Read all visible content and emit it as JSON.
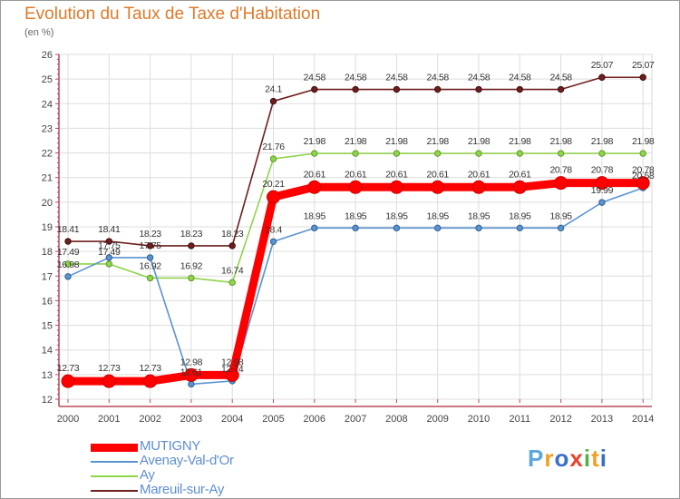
{
  "title": "Evolution du Taux de Taxe d'Habitation",
  "unit_label": "(en %)",
  "logo_text": "Proxiti",
  "logo_colors": [
    "#5ba7e0",
    "#f0a020",
    "#3b6ec9",
    "#e8452c",
    "#55b04a",
    "#f0a020",
    "#3b6ec9"
  ],
  "chart_data": {
    "type": "line",
    "title": "Evolution du Taux de Taxe d'Habitation",
    "ylabel": "(en %)",
    "xlabel": "",
    "categories": [
      "2000",
      "2001",
      "2002",
      "2003",
      "2004",
      "2005",
      "2006",
      "2007",
      "2008",
      "2009",
      "2010",
      "2011",
      "2012",
      "2013",
      "2014"
    ],
    "ylim": [
      12,
      26
    ],
    "yticks": [
      12,
      13,
      14,
      15,
      16,
      17,
      18,
      19,
      20,
      21,
      22,
      23,
      24,
      25,
      26
    ],
    "grid": true,
    "legend_position": "bottom-left",
    "series": [
      {
        "name": "MUTIGNY",
        "color": "#ff0000",
        "values": [
          12.73,
          12.73,
          12.73,
          12.98,
          12.98,
          20.21,
          20.61,
          20.61,
          20.61,
          20.61,
          20.61,
          20.61,
          20.78,
          20.78,
          20.78
        ]
      },
      {
        "name": "Avenay-Val-d'Or",
        "color": "#5a93cf",
        "values": [
          16.98,
          17.75,
          17.75,
          12.61,
          12.74,
          18.4,
          18.95,
          18.95,
          18.95,
          18.95,
          18.95,
          18.95,
          18.95,
          19.99,
          20.58
        ]
      },
      {
        "name": "Ay",
        "color": "#8fd44a",
        "values": [
          17.49,
          17.49,
          16.92,
          16.92,
          16.74,
          21.76,
          21.98,
          21.98,
          21.98,
          21.98,
          21.98,
          21.98,
          21.98,
          21.98,
          21.98
        ]
      },
      {
        "name": "Mareuil-sur-Ay",
        "color": "#6e1e1e",
        "values": [
          18.41,
          18.41,
          18.23,
          18.23,
          18.23,
          24.1,
          24.58,
          24.58,
          24.58,
          24.58,
          24.58,
          24.58,
          24.58,
          25.07,
          25.07
        ]
      }
    ]
  }
}
